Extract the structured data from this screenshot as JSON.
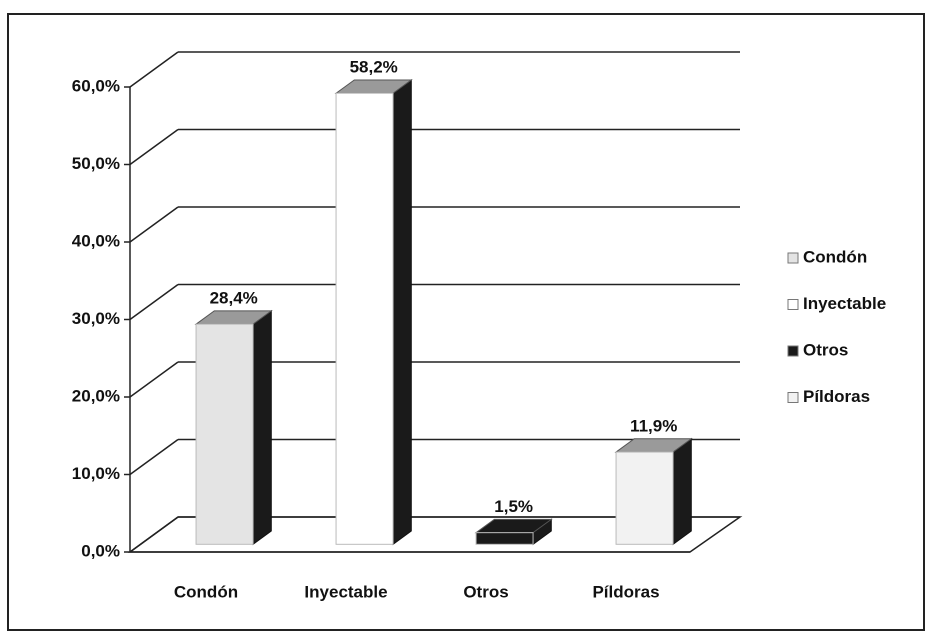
{
  "chart_data": {
    "type": "bar3d",
    "categories": [
      "Condón",
      "Inyectable",
      "Otros",
      "Píldoras"
    ],
    "values": [
      28.4,
      58.2,
      1.5,
      11.9
    ],
    "value_labels": [
      "28,4%",
      "58,2%",
      "1,5%",
      "11,9%"
    ],
    "colors": [
      "#e4e4e4",
      "#ffffff",
      "#1a1a1a",
      "#f2f2f2"
    ],
    "ylim": [
      0,
      60
    ],
    "yticks": [
      {
        "value": 0,
        "label": "0,0%"
      },
      {
        "value": 10,
        "label": "10,0%"
      },
      {
        "value": 20,
        "label": "20,0%"
      },
      {
        "value": 30,
        "label": "30,0%"
      },
      {
        "value": 40,
        "label": "40,0%"
      },
      {
        "value": 50,
        "label": "50,0%"
      },
      {
        "value": 60,
        "label": "60,0%"
      }
    ],
    "grid": true,
    "legend": "right"
  }
}
